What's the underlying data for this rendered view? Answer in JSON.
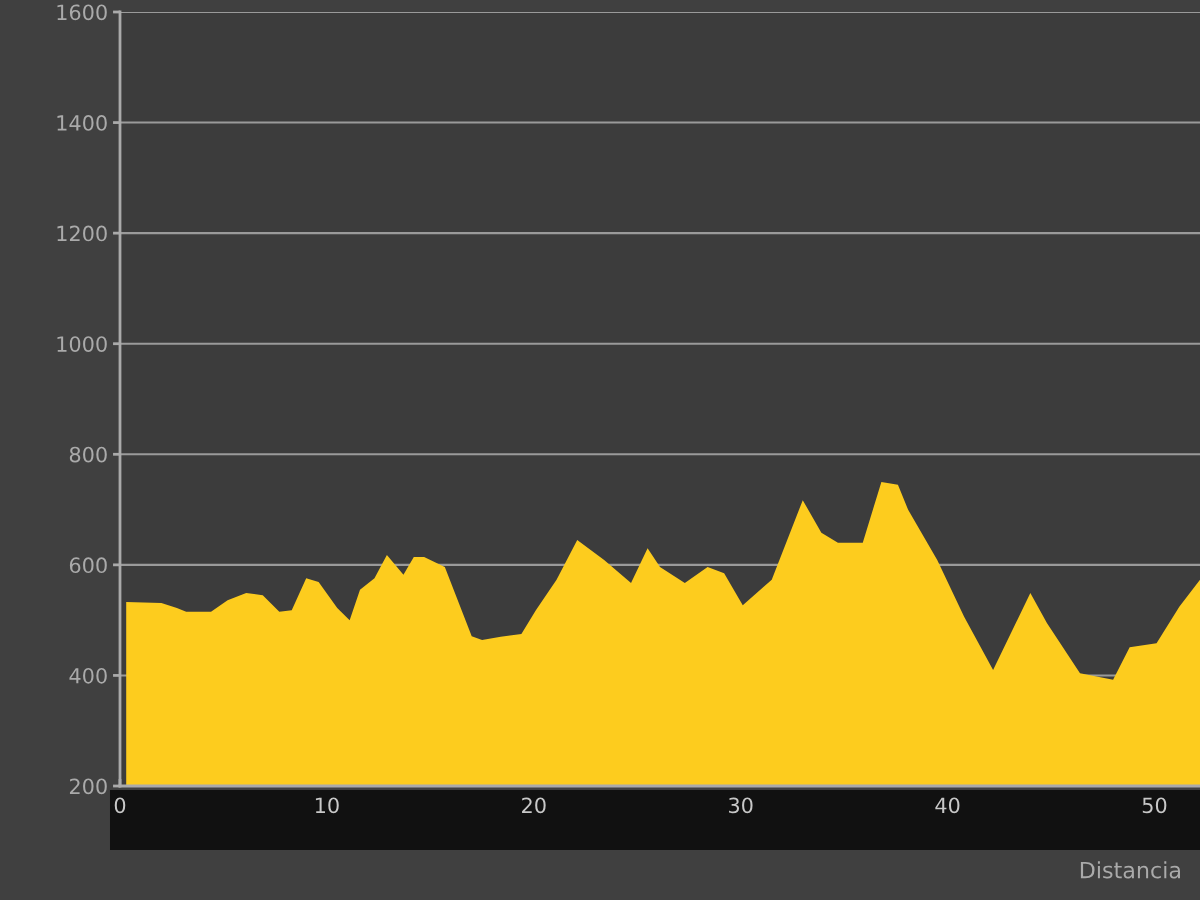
{
  "chart_data": {
    "type": "area",
    "xlabel": "Distancia",
    "x": [
      0.3,
      2.0,
      2.75,
      3.2,
      4.4,
      5.2,
      6.1,
      6.9,
      7.7,
      8.3,
      9.0,
      9.6,
      10.5,
      11.1,
      11.6,
      12.3,
      12.9,
      13.7,
      14.2,
      14.7,
      15.7,
      17.0,
      17.5,
      18.4,
      19.4,
      20.1,
      21.1,
      22.1,
      23.4,
      24.7,
      25.5,
      26.1,
      27.3,
      28.4,
      29.2,
      30.1,
      31.5,
      33.0,
      33.9,
      34.7,
      35.9,
      36.8,
      37.6,
      38.1,
      39.5,
      40.8,
      42.2,
      44.0,
      44.8,
      46.4,
      48.0,
      48.8,
      50.1,
      51.2,
      52.2
    ],
    "series": [
      {
        "color": "#fdcc1e",
        "values": [
          533,
          531,
          522,
          515,
          515,
          536,
          549,
          545,
          515,
          518,
          576,
          569,
          522,
          500,
          555,
          576,
          618,
          582,
          614,
          614,
          596,
          471,
          464,
          470,
          475,
          518,
          573,
          645,
          609,
          567,
          630,
          596,
          567,
          596,
          585,
          527,
          573,
          717,
          658,
          640,
          640,
          750,
          745,
          699,
          609,
          506,
          410,
          549,
          495,
          404,
          392,
          451,
          458,
          524,
          573
        ]
      }
    ],
    "xlim": [
      0,
      52.2
    ],
    "ylim": [
      200,
      1600
    ],
    "xticks": [
      0,
      10,
      20,
      30,
      40,
      50
    ],
    "yticks": [
      200,
      400,
      600,
      800,
      1000,
      1200,
      1400,
      1600
    ],
    "grid": "y"
  }
}
